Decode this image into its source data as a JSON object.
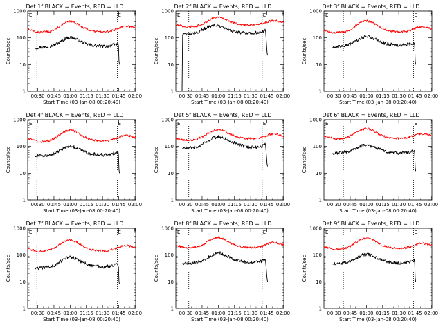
{
  "figure": {
    "xlabel": "Start Time (03-Jan-08 00:20:40)",
    "ylabel": "Counts/sec",
    "x_ticks": [
      "00:30",
      "00:45",
      "01:00",
      "01:15",
      "01:30",
      "01:45",
      "02:00"
    ],
    "y_ticks": [
      "1",
      "10",
      "100",
      "1000"
    ],
    "marker_labels": [
      "E",
      "E"
    ],
    "colors": {
      "events": "#000000",
      "lld": "#ff0000",
      "axes": "#000000",
      "background": "#ffffff"
    }
  },
  "chart_data": [
    {
      "type": "line",
      "title": "Det 1f BLACK = Events, RED = LLD",
      "xlabel": "Start Time (03-Jan-08 00:20:40)",
      "ylabel": "Counts/sec",
      "x_unit": "minutes after 00:20:40",
      "xlim": [
        0,
        100
      ],
      "ylim": [
        1,
        1000
      ],
      "yscale": "log",
      "vlines": [
        8.5,
        83
      ],
      "series": [
        {
          "name": "Events",
          "color": "#000000",
          "x": [
            7,
            10,
            15,
            20,
            25,
            30,
            35,
            40,
            45,
            50,
            55,
            60,
            65,
            70,
            75,
            80,
            84,
            84.6,
            85
          ],
          "y": [
            42,
            44,
            45,
            47,
            55,
            70,
            95,
            105,
            90,
            70,
            58,
            52,
            50,
            48,
            50,
            55,
            60,
            12,
            10
          ]
        },
        {
          "name": "LLD",
          "color": "#ff0000",
          "x": [
            0,
            5,
            10,
            15,
            20,
            25,
            30,
            35,
            40,
            45,
            50,
            55,
            60,
            65,
            70,
            75,
            80,
            85,
            90,
            95,
            100
          ],
          "y": [
            210,
            180,
            160,
            165,
            170,
            200,
            280,
            380,
            420,
            360,
            260,
            210,
            180,
            170,
            165,
            170,
            195,
            240,
            280,
            265,
            235
          ]
        }
      ]
    },
    {
      "type": "line",
      "title": "Det 2f BLACK = Events, RED = LLD",
      "xlabel": "Start Time (03-Jan-08 00:20:40)",
      "ylabel": "Counts/sec",
      "x_unit": "minutes after 00:20:40",
      "xlim": [
        0,
        100
      ],
      "ylim": [
        1,
        1000
      ],
      "yscale": "log",
      "vlines": [
        12,
        80
      ],
      "series": [
        {
          "name": "Events",
          "color": "#000000",
          "x": [
            5.8,
            6,
            8,
            10,
            15,
            20,
            25,
            30,
            35,
            40,
            45,
            50,
            55,
            60,
            65,
            70,
            75,
            80,
            83,
            84.6,
            85
          ],
          "y": [
            1,
            130,
            135,
            138,
            145,
            160,
            200,
            260,
            300,
            280,
            230,
            190,
            170,
            155,
            150,
            150,
            155,
            165,
            210,
            25,
            22
          ]
        },
        {
          "name": "LLD",
          "color": "#ff0000",
          "x": [
            0,
            5,
            10,
            15,
            20,
            25,
            30,
            35,
            40,
            45,
            50,
            55,
            60,
            65,
            70,
            75,
            80,
            85,
            90,
            95,
            100
          ],
          "y": [
            300,
            280,
            260,
            265,
            280,
            330,
            430,
            550,
            600,
            520,
            420,
            350,
            320,
            300,
            300,
            310,
            340,
            400,
            440,
            420,
            380
          ]
        }
      ]
    },
    {
      "type": "line",
      "title": "Det 3f BLACK = Events, RED = LLD",
      "xlabel": "Start Time (03-Jan-08 00:20:40)",
      "ylabel": "Counts/sec",
      "x_unit": "minutes after 00:20:40",
      "xlim": [
        0,
        100
      ],
      "ylim": [
        1,
        1000
      ],
      "yscale": "log",
      "vlines": [
        18,
        83
      ],
      "series": [
        {
          "name": "Events",
          "color": "#000000",
          "x": [
            8,
            10,
            15,
            20,
            25,
            30,
            35,
            40,
            45,
            50,
            55,
            60,
            65,
            70,
            75,
            80,
            84,
            84.6,
            85
          ],
          "y": [
            45,
            46,
            48,
            52,
            60,
            75,
            100,
            115,
            100,
            80,
            65,
            58,
            55,
            52,
            55,
            60,
            65,
            12,
            10
          ]
        },
        {
          "name": "LLD",
          "color": "#ff0000",
          "x": [
            0,
            5,
            10,
            15,
            20,
            25,
            30,
            35,
            40,
            45,
            50,
            55,
            60,
            65,
            70,
            75,
            80,
            85,
            90,
            95,
            100
          ],
          "y": [
            190,
            170,
            155,
            160,
            170,
            210,
            300,
            400,
            440,
            380,
            270,
            210,
            180,
            170,
            165,
            170,
            190,
            230,
            260,
            245,
            215
          ]
        }
      ]
    },
    {
      "type": "line",
      "title": "Det 4f BLACK = Events, RED = LLD",
      "xlabel": "Start Time (03-Jan-08 00:20:40)",
      "ylabel": "Counts/sec",
      "x_unit": "minutes after 00:20:40",
      "xlim": [
        0,
        100
      ],
      "ylim": [
        1,
        1000
      ],
      "yscale": "log",
      "vlines": [
        8.5,
        83
      ],
      "series": [
        {
          "name": "Events",
          "color": "#000000",
          "x": [
            7,
            10,
            15,
            20,
            25,
            30,
            35,
            40,
            45,
            50,
            55,
            60,
            65,
            70,
            75,
            80,
            84,
            84.6,
            85
          ],
          "y": [
            42,
            44,
            45,
            47,
            55,
            70,
            92,
            102,
            88,
            70,
            58,
            52,
            50,
            48,
            50,
            55,
            60,
            12,
            10
          ]
        },
        {
          "name": "LLD",
          "color": "#ff0000",
          "x": [
            0,
            5,
            10,
            15,
            20,
            25,
            30,
            35,
            40,
            45,
            50,
            55,
            60,
            65,
            70,
            75,
            80,
            85,
            90,
            95,
            100
          ],
          "y": [
            195,
            170,
            150,
            155,
            165,
            200,
            275,
            370,
            410,
            350,
            250,
            205,
            175,
            165,
            160,
            165,
            185,
            225,
            260,
            245,
            215
          ]
        }
      ]
    },
    {
      "type": "line",
      "title": "Det 5f BLACK = Events, RED = LLD",
      "xlabel": "Start Time (03-Jan-08 00:20:40)",
      "ylabel": "Counts/sec",
      "x_unit": "minutes after 00:20:40",
      "xlim": [
        0,
        100
      ],
      "ylim": [
        1,
        1000
      ],
      "yscale": "log",
      "vlines": [
        12,
        80
      ],
      "series": [
        {
          "name": "Events",
          "color": "#000000",
          "x": [
            6,
            10,
            15,
            20,
            25,
            30,
            35,
            40,
            45,
            50,
            55,
            60,
            65,
            70,
            75,
            80,
            83,
            84.6,
            85
          ],
          "y": [
            85,
            86,
            88,
            95,
            120,
            160,
            210,
            230,
            200,
            160,
            130,
            110,
            100,
            95,
            95,
            100,
            130,
            20,
            18
          ]
        },
        {
          "name": "LLD",
          "color": "#ff0000",
          "x": [
            0,
            5,
            10,
            15,
            20,
            25,
            30,
            35,
            40,
            45,
            50,
            55,
            60,
            65,
            70,
            75,
            80,
            85,
            90,
            95,
            100
          ],
          "y": [
            200,
            185,
            170,
            175,
            190,
            230,
            310,
            400,
            440,
            380,
            290,
            240,
            210,
            200,
            195,
            200,
            220,
            260,
            290,
            275,
            245
          ]
        }
      ]
    },
    {
      "type": "line",
      "title": "Det 6f BLACK = Events, RED = LLD",
      "xlabel": "Start Time (03-Jan-08 00:20:40)",
      "ylabel": "Counts/sec",
      "x_unit": "minutes after 00:20:40",
      "xlim": [
        0,
        100
      ],
      "ylim": [
        1,
        1000
      ],
      "yscale": "log",
      "vlines": [
        18,
        83
      ],
      "series": [
        {
          "name": "Events",
          "color": "#000000",
          "x": [
            8,
            10,
            15,
            20,
            25,
            30,
            35,
            40,
            45,
            50,
            55,
            60,
            65,
            70,
            75,
            80,
            84,
            84.6,
            85
          ],
          "y": [
            55,
            56,
            58,
            62,
            70,
            85,
            105,
            115,
            100,
            82,
            68,
            60,
            57,
            55,
            57,
            62,
            68,
            14,
            12
          ]
        },
        {
          "name": "LLD",
          "color": "#ff0000",
          "x": [
            0,
            5,
            10,
            15,
            20,
            25,
            30,
            35,
            40,
            45,
            50,
            55,
            60,
            65,
            70,
            75,
            80,
            85,
            90,
            95,
            100
          ],
          "y": [
            240,
            215,
            195,
            195,
            205,
            250,
            340,
            430,
            470,
            400,
            300,
            245,
            215,
            205,
            200,
            205,
            225,
            270,
            300,
            285,
            255
          ]
        }
      ]
    },
    {
      "type": "line",
      "title": "Det 7f BLACK = Events, RED = LLD",
      "xlabel": "Start Time (03-Jan-08 00:20:40)",
      "ylabel": "Counts/sec",
      "x_unit": "minutes after 00:20:40",
      "xlim": [
        0,
        100
      ],
      "ylim": [
        1,
        1000
      ],
      "yscale": "log",
      "vlines": [
        8.5,
        83
      ],
      "series": [
        {
          "name": "Events",
          "color": "#000000",
          "x": [
            7,
            10,
            15,
            20,
            25,
            30,
            35,
            40,
            45,
            50,
            55,
            60,
            65,
            70,
            75,
            80,
            84,
            84.6,
            85
          ],
          "y": [
            30,
            32,
            34,
            36,
            42,
            55,
            75,
            85,
            72,
            56,
            45,
            40,
            38,
            36,
            38,
            42,
            45,
            9,
            8
          ]
        },
        {
          "name": "LLD",
          "color": "#ff0000",
          "x": [
            0,
            5,
            10,
            15,
            20,
            25,
            30,
            35,
            40,
            45,
            50,
            55,
            60,
            65,
            70,
            75,
            80,
            85,
            90,
            95,
            100
          ],
          "y": [
            170,
            150,
            135,
            140,
            150,
            180,
            250,
            330,
            360,
            310,
            225,
            180,
            155,
            145,
            140,
            145,
            165,
            200,
            230,
            215,
            190
          ]
        }
      ]
    },
    {
      "type": "line",
      "title": "Det 8f BLACK = Events, RED = LLD",
      "xlabel": "Start Time (03-Jan-08 00:20:40)",
      "ylabel": "Counts/sec",
      "x_unit": "minutes after 00:20:40",
      "xlim": [
        0,
        100
      ],
      "ylim": [
        1,
        1000
      ],
      "yscale": "log",
      "vlines": [
        12,
        80
      ],
      "series": [
        {
          "name": "Events",
          "color": "#000000",
          "x": [
            6,
            10,
            15,
            20,
            25,
            30,
            35,
            40,
            45,
            50,
            55,
            60,
            65,
            70,
            75,
            80,
            83,
            84.6,
            85
          ],
          "y": [
            48,
            49,
            50,
            53,
            62,
            80,
            108,
            120,
            104,
            82,
            66,
            58,
            55,
            53,
            55,
            60,
            66,
            12,
            10
          ]
        },
        {
          "name": "LLD",
          "color": "#ff0000",
          "x": [
            0,
            5,
            10,
            15,
            20,
            25,
            30,
            35,
            40,
            45,
            50,
            55,
            60,
            65,
            70,
            75,
            80,
            85,
            90,
            95,
            100
          ],
          "y": [
            230,
            205,
            185,
            190,
            200,
            240,
            330,
            420,
            460,
            390,
            290,
            235,
            205,
            195,
            190,
            195,
            215,
            260,
            290,
            275,
            245
          ]
        }
      ]
    },
    {
      "type": "line",
      "title": "Det 9f BLACK = Events, RED = LLD",
      "xlabel": "Start Time (03-Jan-08 00:20:40)",
      "ylabel": "Counts/sec",
      "x_unit": "minutes after 00:20:40",
      "xlim": [
        0,
        100
      ],
      "ylim": [
        1,
        1000
      ],
      "yscale": "log",
      "vlines": [
        18,
        83
      ],
      "series": [
        {
          "name": "Events",
          "color": "#000000",
          "x": [
            8,
            10,
            15,
            20,
            25,
            30,
            35,
            40,
            45,
            50,
            55,
            60,
            65,
            70,
            75,
            80,
            84,
            84.6,
            85
          ],
          "y": [
            45,
            46,
            48,
            52,
            60,
            75,
            98,
            108,
            94,
            76,
            62,
            55,
            52,
            50,
            52,
            57,
            62,
            12,
            10
          ]
        },
        {
          "name": "LLD",
          "color": "#ff0000",
          "x": [
            0,
            5,
            10,
            15,
            20,
            25,
            30,
            35,
            40,
            45,
            50,
            55,
            60,
            65,
            70,
            75,
            80,
            85,
            90,
            95,
            100
          ],
          "y": [
            200,
            180,
            165,
            170,
            180,
            220,
            300,
            390,
            430,
            370,
            275,
            220,
            190,
            180,
            175,
            180,
            200,
            245,
            275,
            260,
            230
          ]
        }
      ]
    }
  ]
}
